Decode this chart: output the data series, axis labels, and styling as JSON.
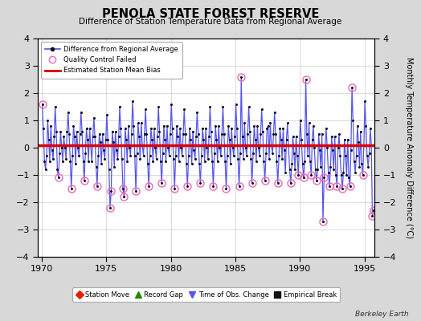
{
  "title": "PENOLA STATE FOREST RESERVE",
  "subtitle": "Difference of Station Temperature Data from Regional Average",
  "ylabel_right": "Monthly Temperature Anomaly Difference (°C)",
  "credit": "Berkeley Earth",
  "xlim": [
    1969.7,
    1995.8
  ],
  "ylim": [
    -4,
    4
  ],
  "yticks": [
    -4,
    -3,
    -2,
    -1,
    0,
    1,
    2,
    3,
    4
  ],
  "xticks": [
    1970,
    1975,
    1980,
    1985,
    1990,
    1995
  ],
  "mean_bias": 0.1,
  "background_color": "#d8d8d8",
  "plot_bg_color": "#ffffff",
  "line_color": "#5555ee",
  "bias_line_color": "#dd0000",
  "data_color": "#111111",
  "qc_failed_color": "#ee66bb",
  "monthly_data": [
    [
      1970.04,
      1.6
    ],
    [
      1970.12,
      0.7
    ],
    [
      1970.21,
      -0.5
    ],
    [
      1970.29,
      -0.8
    ],
    [
      1970.38,
      -0.3
    ],
    [
      1970.46,
      1.0
    ],
    [
      1970.54,
      0.3
    ],
    [
      1970.62,
      -0.5
    ],
    [
      1970.71,
      0.8
    ],
    [
      1970.79,
      -0.1
    ],
    [
      1970.88,
      -0.4
    ],
    [
      1970.96,
      0.4
    ],
    [
      1971.04,
      1.5
    ],
    [
      1971.12,
      0.6
    ],
    [
      1971.21,
      -0.8
    ],
    [
      1971.29,
      -1.1
    ],
    [
      1971.38,
      -0.2
    ],
    [
      1971.46,
      0.6
    ],
    [
      1971.54,
      0.0
    ],
    [
      1971.62,
      -0.5
    ],
    [
      1971.71,
      0.4
    ],
    [
      1971.79,
      0.0
    ],
    [
      1971.88,
      -0.4
    ],
    [
      1971.96,
      0.6
    ],
    [
      1972.04,
      1.3
    ],
    [
      1972.12,
      0.5
    ],
    [
      1972.21,
      -0.5
    ],
    [
      1972.29,
      -1.5
    ],
    [
      1972.38,
      -0.3
    ],
    [
      1972.46,
      0.8
    ],
    [
      1972.54,
      0.4
    ],
    [
      1972.62,
      -0.6
    ],
    [
      1972.71,
      0.6
    ],
    [
      1972.79,
      0.0
    ],
    [
      1972.88,
      -0.3
    ],
    [
      1972.96,
      0.5
    ],
    [
      1973.04,
      1.3
    ],
    [
      1973.12,
      0.6
    ],
    [
      1973.21,
      -0.5
    ],
    [
      1973.29,
      -1.2
    ],
    [
      1973.38,
      -0.2
    ],
    [
      1973.46,
      0.7
    ],
    [
      1973.54,
      0.3
    ],
    [
      1973.62,
      -0.5
    ],
    [
      1973.71,
      0.7
    ],
    [
      1973.79,
      0.1
    ],
    [
      1973.88,
      -0.5
    ],
    [
      1973.96,
      0.4
    ],
    [
      1974.04,
      1.1
    ],
    [
      1974.12,
      0.4
    ],
    [
      1974.21,
      -0.7
    ],
    [
      1974.29,
      -1.4
    ],
    [
      1974.38,
      -0.3
    ],
    [
      1974.46,
      0.5
    ],
    [
      1974.54,
      0.2
    ],
    [
      1974.62,
      -0.6
    ],
    [
      1974.71,
      0.5
    ],
    [
      1974.79,
      -0.1
    ],
    [
      1974.88,
      -0.4
    ],
    [
      1974.96,
      0.3
    ],
    [
      1975.04,
      1.2
    ],
    [
      1975.12,
      0.3
    ],
    [
      1975.21,
      -0.8
    ],
    [
      1975.29,
      -2.2
    ],
    [
      1975.38,
      -1.6
    ],
    [
      1975.46,
      0.6
    ],
    [
      1975.54,
      0.2
    ],
    [
      1975.62,
      -0.7
    ],
    [
      1975.71,
      0.6
    ],
    [
      1975.79,
      -0.1
    ],
    [
      1975.88,
      -0.4
    ],
    [
      1975.96,
      0.4
    ],
    [
      1976.04,
      1.5
    ],
    [
      1976.12,
      0.7
    ],
    [
      1976.21,
      -0.4
    ],
    [
      1976.29,
      -1.5
    ],
    [
      1976.38,
      -1.8
    ],
    [
      1976.46,
      0.7
    ],
    [
      1976.54,
      0.3
    ],
    [
      1976.62,
      -0.5
    ],
    [
      1976.71,
      0.8
    ],
    [
      1976.79,
      0.0
    ],
    [
      1976.88,
      -0.3
    ],
    [
      1976.96,
      0.5
    ],
    [
      1977.04,
      1.7
    ],
    [
      1977.12,
      0.8
    ],
    [
      1977.21,
      -0.3
    ],
    [
      1977.29,
      -1.6
    ],
    [
      1977.38,
      -0.2
    ],
    [
      1977.46,
      0.9
    ],
    [
      1977.54,
      0.4
    ],
    [
      1977.62,
      -0.4
    ],
    [
      1977.71,
      0.9
    ],
    [
      1977.79,
      0.1
    ],
    [
      1977.88,
      -0.3
    ],
    [
      1977.96,
      0.5
    ],
    [
      1978.04,
      1.4
    ],
    [
      1978.12,
      0.5
    ],
    [
      1978.21,
      -0.6
    ],
    [
      1978.29,
      -1.4
    ],
    [
      1978.38,
      -0.3
    ],
    [
      1978.46,
      0.7
    ],
    [
      1978.54,
      0.3
    ],
    [
      1978.62,
      -0.5
    ],
    [
      1978.71,
      0.7
    ],
    [
      1978.79,
      -0.0
    ],
    [
      1978.88,
      -0.4
    ],
    [
      1978.96,
      0.4
    ],
    [
      1979.04,
      1.5
    ],
    [
      1979.12,
      0.6
    ],
    [
      1979.21,
      -0.5
    ],
    [
      1979.29,
      -1.3
    ],
    [
      1979.38,
      -0.2
    ],
    [
      1979.46,
      0.8
    ],
    [
      1979.54,
      0.3
    ],
    [
      1979.62,
      -0.5
    ],
    [
      1979.71,
      0.8
    ],
    [
      1979.79,
      0.0
    ],
    [
      1979.88,
      -0.3
    ],
    [
      1979.96,
      0.5
    ],
    [
      1980.04,
      1.6
    ],
    [
      1980.12,
      0.7
    ],
    [
      1980.21,
      -0.4
    ],
    [
      1980.29,
      -1.5
    ],
    [
      1980.38,
      -0.3
    ],
    [
      1980.46,
      0.8
    ],
    [
      1980.54,
      0.4
    ],
    [
      1980.62,
      -0.5
    ],
    [
      1980.71,
      0.7
    ],
    [
      1980.79,
      0.0
    ],
    [
      1980.88,
      -0.3
    ],
    [
      1980.96,
      0.5
    ],
    [
      1981.04,
      1.4
    ],
    [
      1981.12,
      0.5
    ],
    [
      1981.21,
      -0.6
    ],
    [
      1981.29,
      -1.4
    ],
    [
      1981.38,
      -0.3
    ],
    [
      1981.46,
      0.7
    ],
    [
      1981.54,
      0.3
    ],
    [
      1981.62,
      -0.6
    ],
    [
      1981.71,
      0.6
    ],
    [
      1981.79,
      -0.1
    ],
    [
      1981.88,
      -0.4
    ],
    [
      1981.96,
      0.4
    ],
    [
      1982.04,
      1.3
    ],
    [
      1982.12,
      0.5
    ],
    [
      1982.21,
      -0.6
    ],
    [
      1982.29,
      -1.3
    ],
    [
      1982.38,
      -0.3
    ],
    [
      1982.46,
      0.7
    ],
    [
      1982.54,
      0.3
    ],
    [
      1982.62,
      -0.5
    ],
    [
      1982.71,
      0.7
    ],
    [
      1982.79,
      -0.0
    ],
    [
      1982.88,
      -0.4
    ],
    [
      1982.96,
      0.4
    ],
    [
      1983.04,
      1.5
    ],
    [
      1983.12,
      0.6
    ],
    [
      1983.21,
      -0.5
    ],
    [
      1983.29,
      -1.4
    ],
    [
      1983.38,
      -0.2
    ],
    [
      1983.46,
      0.8
    ],
    [
      1983.54,
      0.3
    ],
    [
      1983.62,
      -0.5
    ],
    [
      1983.71,
      0.8
    ],
    [
      1983.79,
      0.0
    ],
    [
      1983.88,
      -0.3
    ],
    [
      1983.96,
      0.5
    ],
    [
      1984.04,
      1.5
    ],
    [
      1984.12,
      0.5
    ],
    [
      1984.21,
      -0.5
    ],
    [
      1984.29,
      -1.5
    ],
    [
      1984.38,
      -0.3
    ],
    [
      1984.46,
      0.8
    ],
    [
      1984.54,
      0.3
    ],
    [
      1984.62,
      -0.6
    ],
    [
      1984.71,
      0.7
    ],
    [
      1984.79,
      -0.0
    ],
    [
      1984.88,
      -0.3
    ],
    [
      1984.96,
      0.4
    ],
    [
      1985.04,
      1.6
    ],
    [
      1985.12,
      0.7
    ],
    [
      1985.21,
      -0.4
    ],
    [
      1985.29,
      -1.4
    ],
    [
      1985.38,
      -0.2
    ],
    [
      1985.46,
      2.6
    ],
    [
      1985.54,
      0.4
    ],
    [
      1985.62,
      -0.4
    ],
    [
      1985.71,
      0.9
    ],
    [
      1985.79,
      0.0
    ],
    [
      1985.88,
      -0.3
    ],
    [
      1985.96,
      0.5
    ],
    [
      1986.04,
      1.5
    ],
    [
      1986.12,
      0.6
    ],
    [
      1986.21,
      -0.4
    ],
    [
      1986.29,
      -1.3
    ],
    [
      1986.38,
      -0.2
    ],
    [
      1986.46,
      0.8
    ],
    [
      1986.54,
      0.3
    ],
    [
      1986.62,
      -0.5
    ],
    [
      1986.71,
      0.8
    ],
    [
      1986.79,
      0.0
    ],
    [
      1986.88,
      -0.3
    ],
    [
      1986.96,
      0.5
    ],
    [
      1987.04,
      1.4
    ],
    [
      1987.12,
      0.6
    ],
    [
      1987.21,
      -0.5
    ],
    [
      1987.29,
      -1.2
    ],
    [
      1987.38,
      -0.2
    ],
    [
      1987.46,
      0.7
    ],
    [
      1987.54,
      0.8
    ],
    [
      1987.62,
      -0.4
    ],
    [
      1987.71,
      0.9
    ],
    [
      1987.79,
      0.1
    ],
    [
      1987.88,
      -0.2
    ],
    [
      1987.96,
      0.5
    ],
    [
      1988.04,
      1.3
    ],
    [
      1988.12,
      0.5
    ],
    [
      1988.21,
      -0.5
    ],
    [
      1988.29,
      -1.3
    ],
    [
      1988.38,
      -0.3
    ],
    [
      1988.46,
      0.7
    ],
    [
      1988.54,
      0.3
    ],
    [
      1988.62,
      -0.4
    ],
    [
      1988.71,
      0.7
    ],
    [
      1988.79,
      -0.1
    ],
    [
      1988.88,
      -0.9
    ],
    [
      1988.96,
      0.3
    ],
    [
      1989.04,
      0.9
    ],
    [
      1989.12,
      0.1
    ],
    [
      1989.21,
      -0.8
    ],
    [
      1989.29,
      -1.3
    ],
    [
      1989.38,
      -0.6
    ],
    [
      1989.46,
      0.4
    ],
    [
      1989.54,
      -0.2
    ],
    [
      1989.62,
      -0.8
    ],
    [
      1989.71,
      0.4
    ],
    [
      1989.79,
      -0.3
    ],
    [
      1989.88,
      -1.0
    ],
    [
      1989.96,
      0.1
    ],
    [
      1990.04,
      1.0
    ],
    [
      1990.12,
      0.3
    ],
    [
      1990.21,
      -0.6
    ],
    [
      1990.29,
      -1.1
    ],
    [
      1990.38,
      -0.5
    ],
    [
      1990.46,
      2.5
    ],
    [
      1990.54,
      0.5
    ],
    [
      1990.62,
      -0.3
    ],
    [
      1990.71,
      0.9
    ],
    [
      1990.79,
      -0.5
    ],
    [
      1990.88,
      -1.0
    ],
    [
      1990.96,
      0.3
    ],
    [
      1991.04,
      0.8
    ],
    [
      1991.12,
      0.0
    ],
    [
      1991.21,
      -0.8
    ],
    [
      1991.29,
      -1.2
    ],
    [
      1991.38,
      -0.8
    ],
    [
      1991.46,
      0.5
    ],
    [
      1991.54,
      -0.1
    ],
    [
      1991.62,
      -0.7
    ],
    [
      1991.71,
      0.5
    ],
    [
      1991.79,
      -2.7
    ],
    [
      1991.88,
      -1.1
    ],
    [
      1991.96,
      0.1
    ],
    [
      1992.04,
      0.7
    ],
    [
      1992.12,
      0.0
    ],
    [
      1992.21,
      -0.9
    ],
    [
      1992.29,
      -1.4
    ],
    [
      1992.38,
      -0.7
    ],
    [
      1992.46,
      0.4
    ],
    [
      1992.54,
      -0.1
    ],
    [
      1992.62,
      -0.8
    ],
    [
      1992.71,
      0.4
    ],
    [
      1992.79,
      -1.0
    ],
    [
      1992.88,
      -1.4
    ],
    [
      1992.96,
      0.0
    ],
    [
      1993.04,
      0.5
    ],
    [
      1993.12,
      -0.3
    ],
    [
      1993.21,
      -1.0
    ],
    [
      1993.29,
      -1.5
    ],
    [
      1993.38,
      -0.9
    ],
    [
      1993.46,
      0.3
    ],
    [
      1993.54,
      -0.3
    ],
    [
      1993.62,
      -1.0
    ],
    [
      1993.71,
      0.3
    ],
    [
      1993.79,
      -1.1
    ],
    [
      1993.88,
      -1.4
    ],
    [
      1993.96,
      -0.1
    ],
    [
      1994.04,
      2.2
    ],
    [
      1994.12,
      1.0
    ],
    [
      1994.21,
      -0.5
    ],
    [
      1994.29,
      -0.9
    ],
    [
      1994.38,
      -0.3
    ],
    [
      1994.46,
      0.8
    ],
    [
      1994.54,
      0.2
    ],
    [
      1994.62,
      -0.7
    ],
    [
      1994.71,
      0.6
    ],
    [
      1994.79,
      -0.6
    ],
    [
      1994.88,
      -1.0
    ],
    [
      1994.96,
      0.1
    ],
    [
      1995.04,
      1.7
    ],
    [
      1995.12,
      0.8
    ],
    [
      1995.21,
      -0.3
    ],
    [
      1995.29,
      -0.7
    ],
    [
      1995.38,
      -0.2
    ],
    [
      1995.46,
      0.7
    ],
    [
      1995.54,
      0.1
    ],
    [
      1995.62,
      -2.5
    ],
    [
      1995.71,
      -2.3
    ]
  ],
  "qc_failed_points": [
    [
      1970.04,
      1.6
    ],
    [
      1971.29,
      -1.1
    ],
    [
      1972.29,
      -1.5
    ],
    [
      1973.29,
      -1.2
    ],
    [
      1974.29,
      -1.4
    ],
    [
      1975.29,
      -2.2
    ],
    [
      1975.38,
      -1.6
    ],
    [
      1976.29,
      -1.5
    ],
    [
      1976.38,
      -1.8
    ],
    [
      1977.29,
      -1.6
    ],
    [
      1978.29,
      -1.4
    ],
    [
      1979.29,
      -1.3
    ],
    [
      1980.29,
      -1.5
    ],
    [
      1981.29,
      -1.4
    ],
    [
      1982.29,
      -1.3
    ],
    [
      1983.29,
      -1.4
    ],
    [
      1984.29,
      -1.5
    ],
    [
      1985.46,
      2.6
    ],
    [
      1985.29,
      -1.4
    ],
    [
      1986.29,
      -1.3
    ],
    [
      1987.29,
      -1.2
    ],
    [
      1988.29,
      -1.3
    ],
    [
      1989.29,
      -1.3
    ],
    [
      1989.88,
      -1.0
    ],
    [
      1990.46,
      2.5
    ],
    [
      1990.29,
      -1.1
    ],
    [
      1990.88,
      -1.0
    ],
    [
      1991.29,
      -1.2
    ],
    [
      1991.79,
      -2.7
    ],
    [
      1991.88,
      -1.1
    ],
    [
      1992.29,
      -1.4
    ],
    [
      1992.88,
      -1.4
    ],
    [
      1993.29,
      -1.5
    ],
    [
      1993.88,
      -1.4
    ],
    [
      1994.04,
      2.2
    ],
    [
      1994.88,
      -1.0
    ],
    [
      1995.62,
      -2.5
    ],
    [
      1995.71,
      -2.3
    ]
  ],
  "legend2_items": [
    {
      "label": "Station Move",
      "color": "#dd2200",
      "marker": "D"
    },
    {
      "label": "Record Gap",
      "color": "#228800",
      "marker": "^"
    },
    {
      "label": "Time of Obs. Change",
      "color": "#5555ee",
      "marker": "v"
    },
    {
      "label": "Empirical Break",
      "color": "#111111",
      "marker": "s"
    }
  ]
}
